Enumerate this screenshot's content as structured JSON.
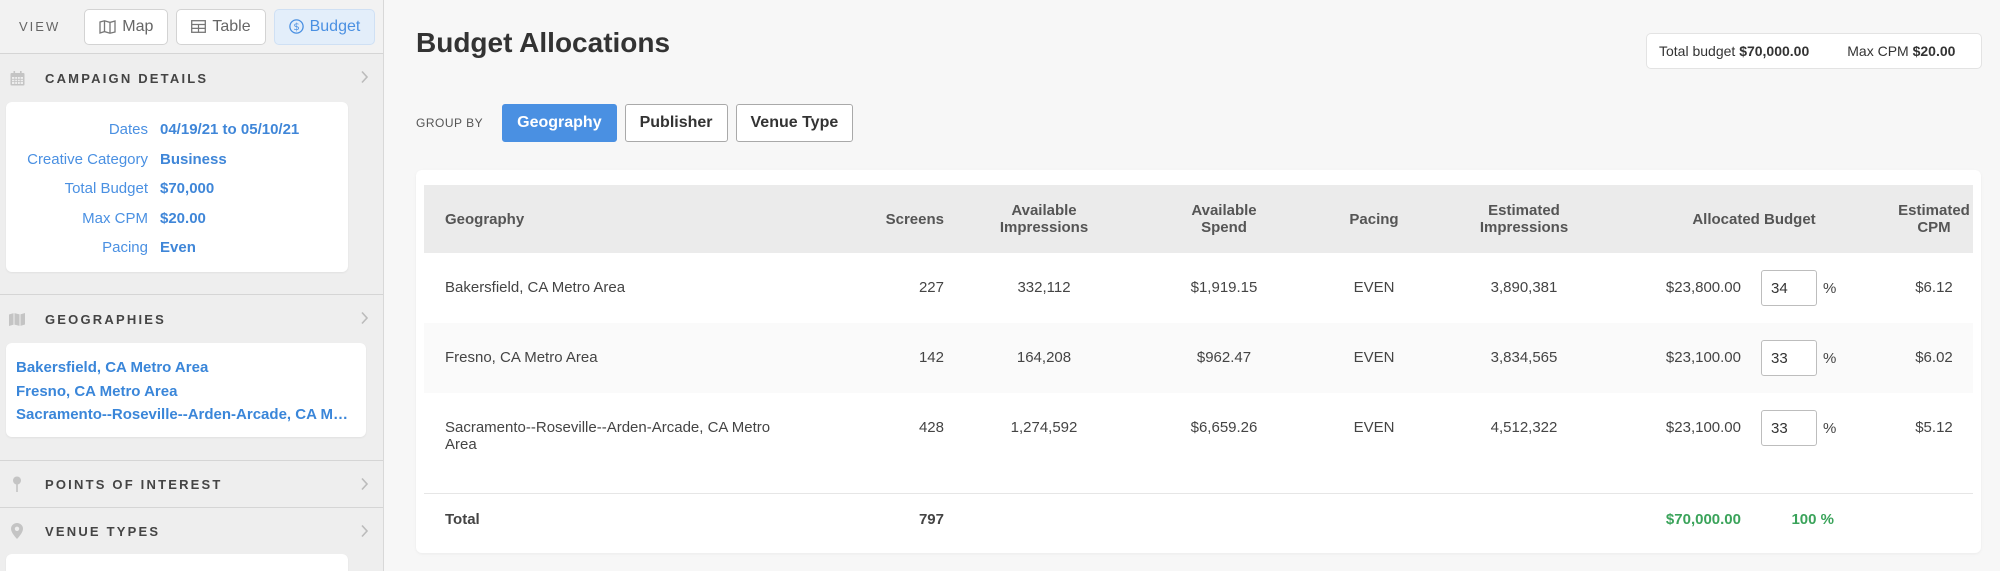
{
  "sidebar": {
    "view_label": "VIEW",
    "view_buttons": [
      {
        "label": "Map",
        "icon": "map-icon"
      },
      {
        "label": "Table",
        "icon": "table-icon"
      },
      {
        "label": "Budget",
        "icon": "dollar-icon"
      }
    ],
    "campaign_details": {
      "title": "CAMPAIGN DETAILS",
      "rows": [
        {
          "key": "Dates",
          "value": "04/19/21 to 05/10/21"
        },
        {
          "key": "Creative Category",
          "value": "Business"
        },
        {
          "key": "Total Budget",
          "value": "$70,000"
        },
        {
          "key": "Max CPM",
          "value": "$20.00"
        },
        {
          "key": "Pacing",
          "value": "Even"
        }
      ]
    },
    "geographies": {
      "title": "GEOGRAPHIES",
      "items": [
        "Bakersfield, CA Metro Area",
        "Fresno, CA Metro Area",
        "Sacramento--Roseville--Arden-Arcade, CA Metro Area"
      ]
    },
    "points_of_interest": {
      "title": "POINTS OF INTEREST"
    },
    "venue_types": {
      "title": "VENUE TYPES"
    }
  },
  "main": {
    "title": "Budget Allocations",
    "totals": {
      "total_budget_label": "Total budget",
      "total_budget_value": "$70,000.00",
      "max_cpm_label": "Max CPM",
      "max_cpm_value": "$20.00"
    },
    "group_by": {
      "label": "GROUP BY",
      "options": [
        "Geography",
        "Publisher",
        "Venue Type"
      ],
      "selected": "Geography"
    },
    "table": {
      "headers": {
        "geography": "Geography",
        "screens": "Screens",
        "available_impressions": "Available Impressions",
        "available_spend": "Available Spend",
        "pacing": "Pacing",
        "estimated_impressions": "Estimated Impressions",
        "allocated_budget": "Allocated Budget",
        "estimated_cpm": "Estimated CPM"
      },
      "rows": [
        {
          "geography": "Bakersfield, CA Metro Area",
          "screens": "227",
          "available_impressions": "332,112",
          "available_spend": "$1,919.15",
          "pacing": "EVEN",
          "estimated_impressions": "3,890,381",
          "allocated_budget": "$23,800.00",
          "percent": "34",
          "estimated_cpm": "$6.12"
        },
        {
          "geography": "Fresno, CA Metro Area",
          "screens": "142",
          "available_impressions": "164,208",
          "available_spend": "$962.47",
          "pacing": "EVEN",
          "estimated_impressions": "3,834,565",
          "allocated_budget": "$23,100.00",
          "percent": "33",
          "estimated_cpm": "$6.02"
        },
        {
          "geography": "Sacramento--Roseville--Arden-Arcade, CA Metro Area",
          "screens": "428",
          "available_impressions": "1,274,592",
          "available_spend": "$6,659.26",
          "pacing": "EVEN",
          "estimated_impressions": "4,512,322",
          "allocated_budget": "$23,100.00",
          "percent": "33",
          "estimated_cpm": "$5.12"
        }
      ],
      "percent_sign": "%",
      "total": {
        "label": "Total",
        "screens": "797",
        "allocated_budget": "$70,000.00",
        "percent": "100 %"
      }
    }
  },
  "colors": {
    "accent": "#4a90e2",
    "success": "#3aa35a"
  }
}
